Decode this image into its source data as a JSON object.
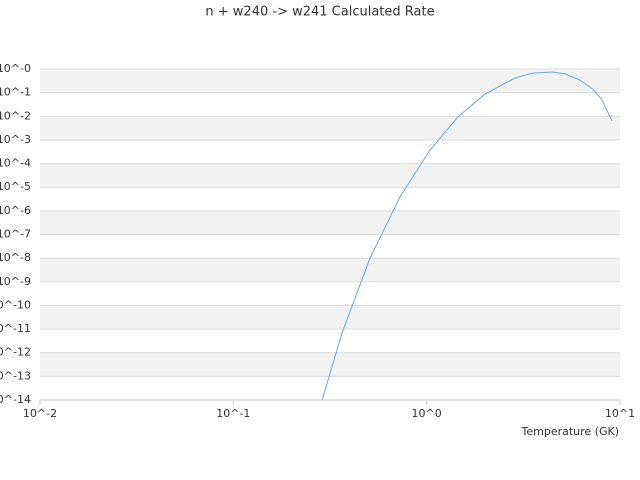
{
  "chart_data": {
    "type": "line",
    "title": "n + w240 -> w241 Calculated Rate",
    "x_label": "Temperature (GK)",
    "x_scale": "log",
    "y_scale": "log",
    "grid": true,
    "banded_grid": true,
    "xlim": [
      0.01,
      10
    ],
    "ylim": [
      1e-14,
      1
    ],
    "xticks": [
      {
        "value": 0.01,
        "label": "10^-2"
      },
      {
        "value": 0.1,
        "label": "10^-1"
      },
      {
        "value": 1,
        "label": "10^0"
      },
      {
        "value": 10,
        "label": "10^1"
      }
    ],
    "yticks": [
      {
        "value": 1e-14,
        "label": "10^-14"
      },
      {
        "value": 1e-13,
        "label": "10^-13"
      },
      {
        "value": 1e-12,
        "label": "10^-12"
      },
      {
        "value": 1e-11,
        "label": "10^-11"
      },
      {
        "value": 1e-10,
        "label": "10^-10"
      },
      {
        "value": 1e-09,
        "label": "10^-9"
      },
      {
        "value": 1e-08,
        "label": "10^-8"
      },
      {
        "value": 1e-07,
        "label": "10^-7"
      },
      {
        "value": 1e-06,
        "label": "10^-6"
      },
      {
        "value": 1e-05,
        "label": "10^-5"
      },
      {
        "value": 0.0001,
        "label": "10^-4"
      },
      {
        "value": 0.001,
        "label": "10^-3"
      },
      {
        "value": 0.01,
        "label": "10^-2"
      },
      {
        "value": 0.1,
        "label": "10^-1"
      },
      {
        "value": 1,
        "label": "10^-0"
      }
    ],
    "x": [
      0.288,
      0.365,
      0.509,
      0.728,
      1.04,
      1.45,
      2.0,
      2.87,
      3.55,
      4.5,
      5.2,
      6.2,
      7.25,
      8.07,
      9.1
    ],
    "series": [
      {
        "color": "#6fa8dc",
        "values": [
          1e-14,
          6.8e-12,
          1e-08,
          3.9e-06,
          0.00037,
          0.0093,
          0.087,
          0.42,
          0.68,
          0.75,
          0.62,
          0.34,
          0.14,
          0.049,
          0.0063
        ]
      }
    ]
  }
}
